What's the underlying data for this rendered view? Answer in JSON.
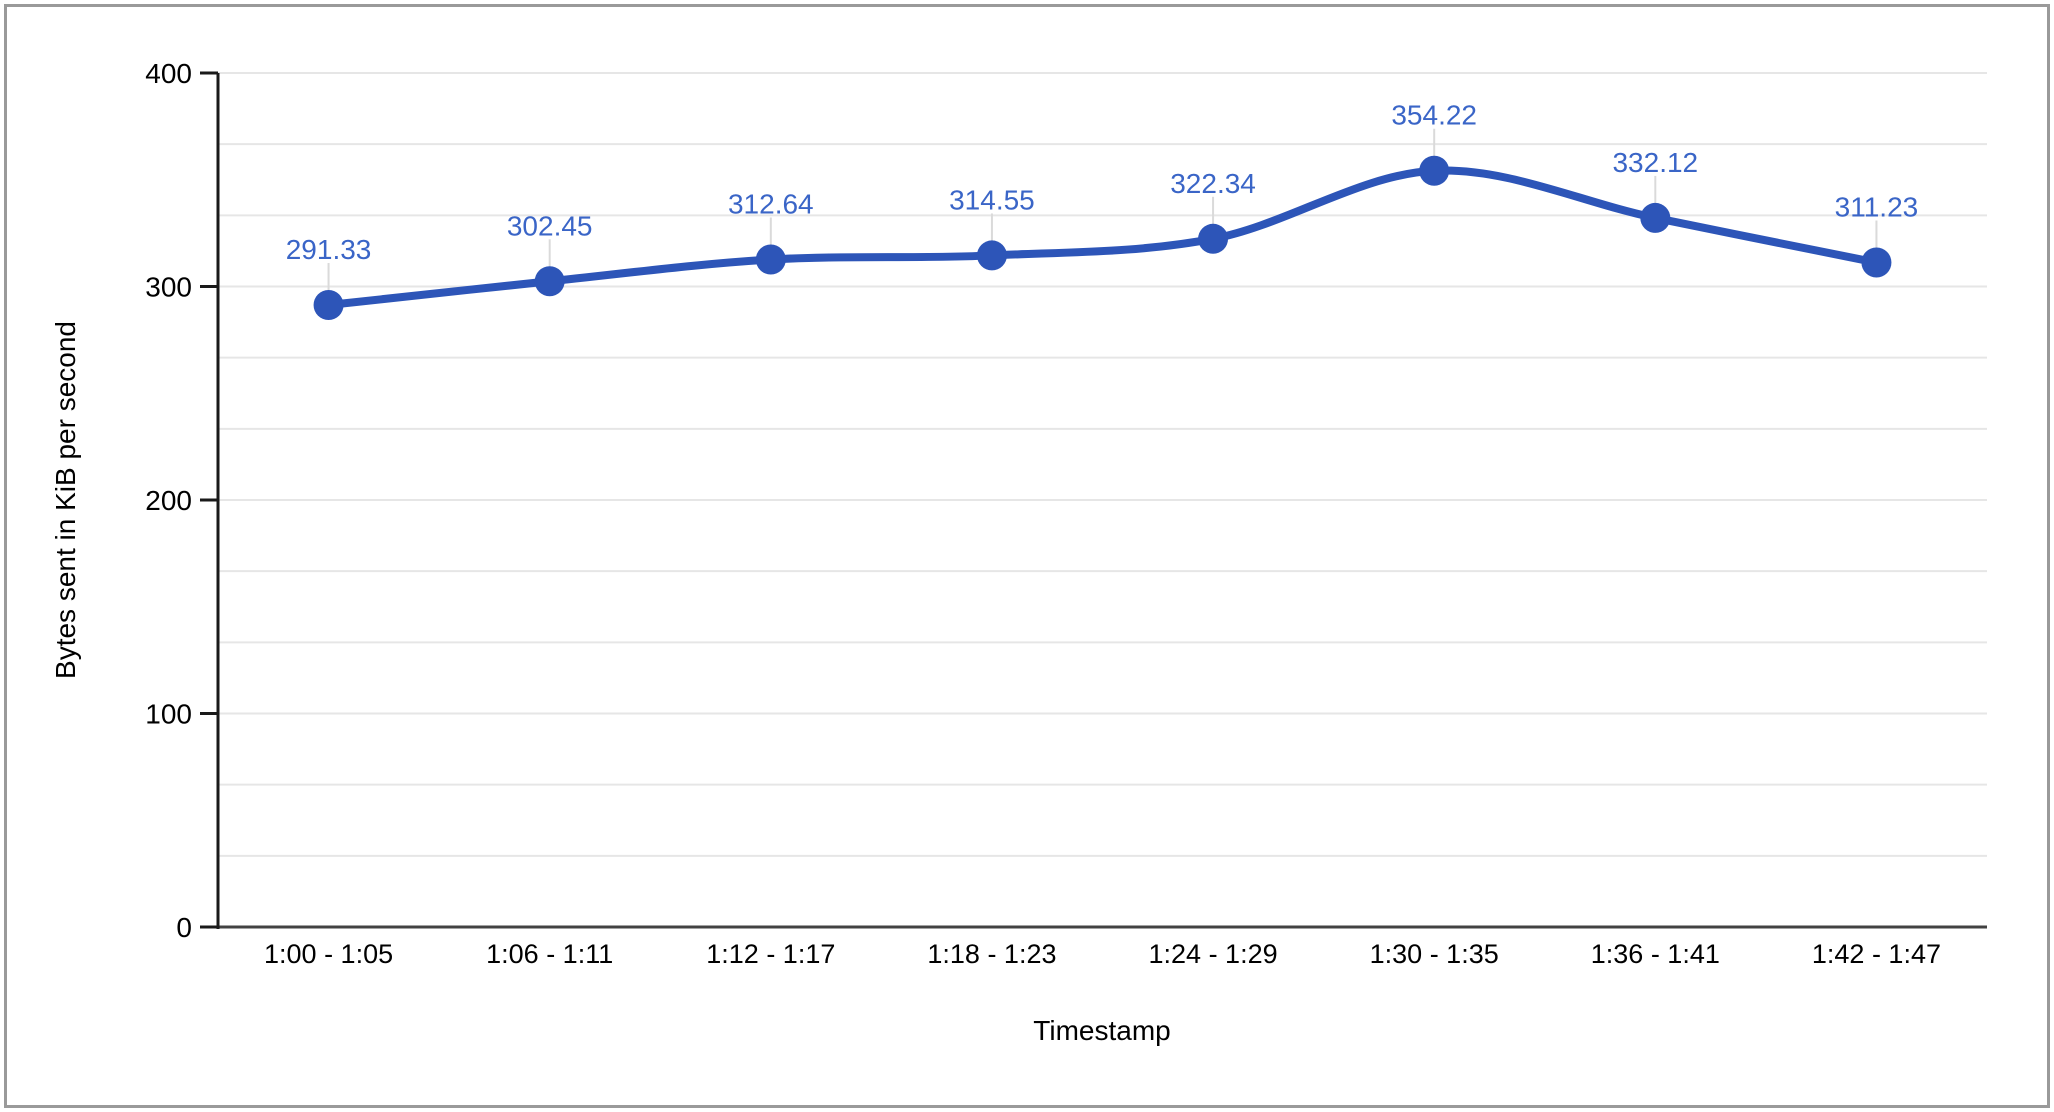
{
  "page": {
    "background": "#ffffff",
    "border_color": "#9a9a9a"
  },
  "chart_data": {
    "type": "line",
    "smooth": true,
    "title": "",
    "xlabel": "Timestamp",
    "ylabel": "Bytes sent in KiB per second",
    "categories": [
      "1:00 - 1:05",
      "1:06 - 1:11",
      "1:12 - 1:17",
      "1:18 - 1:23",
      "1:24 - 1:29",
      "1:30 - 1:35",
      "1:36 - 1:41",
      "1:42 - 1:47"
    ],
    "series": [
      {
        "values": [
          291.33,
          302.45,
          312.64,
          314.55,
          322.34,
          354.22,
          332.12,
          311.23
        ],
        "data_labels": [
          "291.33",
          "302.45",
          "312.64",
          "314.55",
          "322.34",
          "354.22",
          "332.12",
          "311.23"
        ]
      }
    ],
    "ylim": [
      0,
      400
    ],
    "y_tick_labels": [
      "0",
      "100",
      "200",
      "300",
      "400"
    ],
    "minor_gridlines_per_major": 2,
    "grid": true,
    "legend": "none",
    "point_markers": true,
    "colors": {
      "series_line": "#2d55b8",
      "marker_fill": "#2d55b8",
      "data_label": "#3a65c7",
      "gridline": "#e6e6e6",
      "axis_line": "#1a1a1a",
      "baseline": "#424242",
      "leader_line": "#dadada",
      "axis_text": "#000000"
    }
  }
}
